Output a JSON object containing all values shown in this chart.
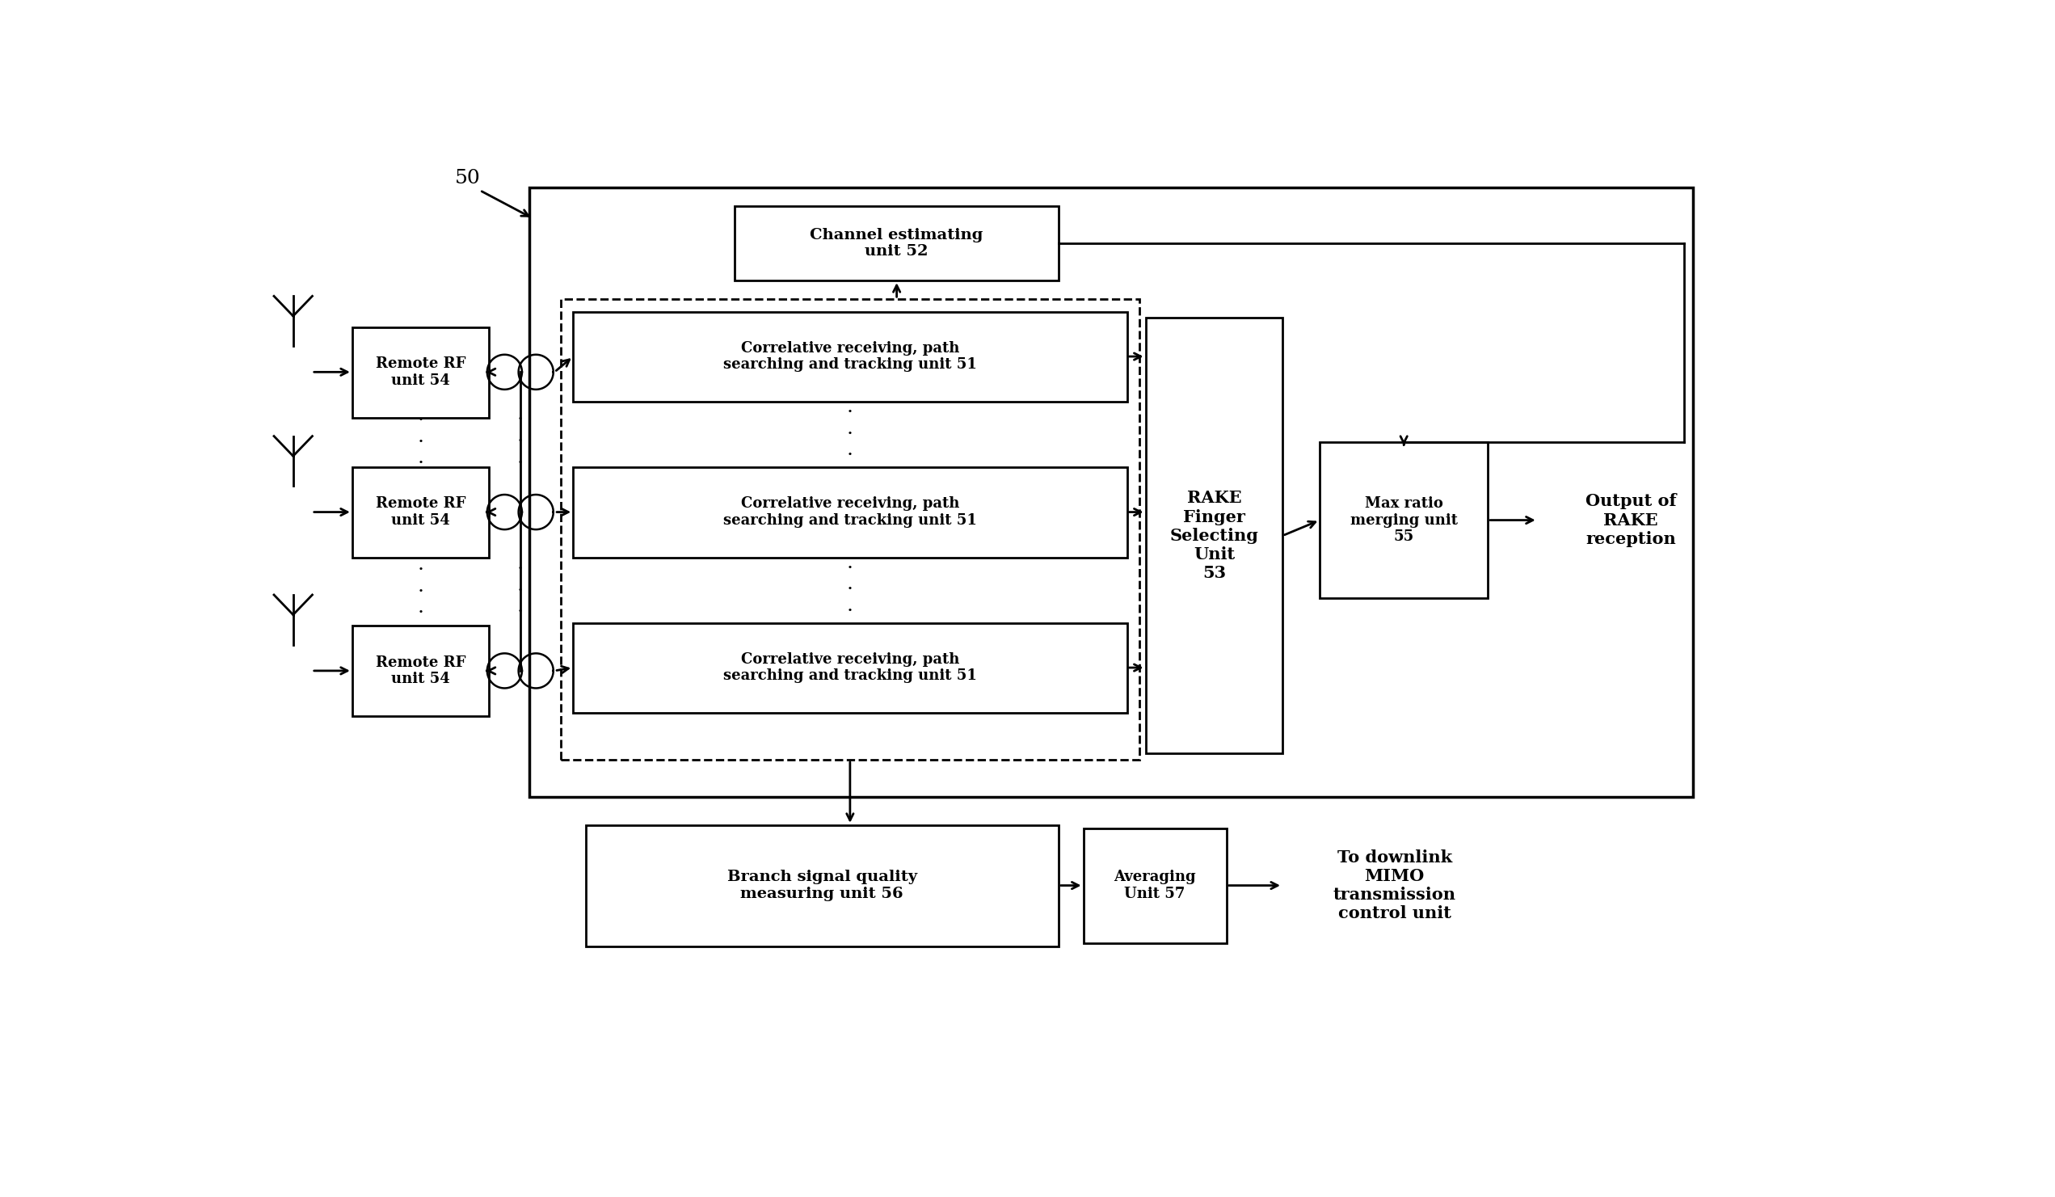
{
  "bg_color": "#ffffff",
  "line_color": "#000000",
  "font_color": "#000000",
  "fig_width": 25.43,
  "fig_height": 14.81,
  "label_50": "50",
  "label_output": "Output of\nRAKE\nreception",
  "label_downlink": "To downlink\nMIMO\ntransmission\ncontrol unit",
  "box_channel": "Channel estimating\nunit 52",
  "box_rake": "RAKE\nFinger\nSelecting\nUnit\n53",
  "box_maxratio": "Max ratio\nmerging unit\n55",
  "box_branch": "Branch signal quality\nmeasuring unit 56",
  "box_avg": "Averaging\nUnit 57",
  "box_corr": "Correlative receiving, path\nsearching and tracking unit 51",
  "box_rf": "Remote RF\nunit 54"
}
